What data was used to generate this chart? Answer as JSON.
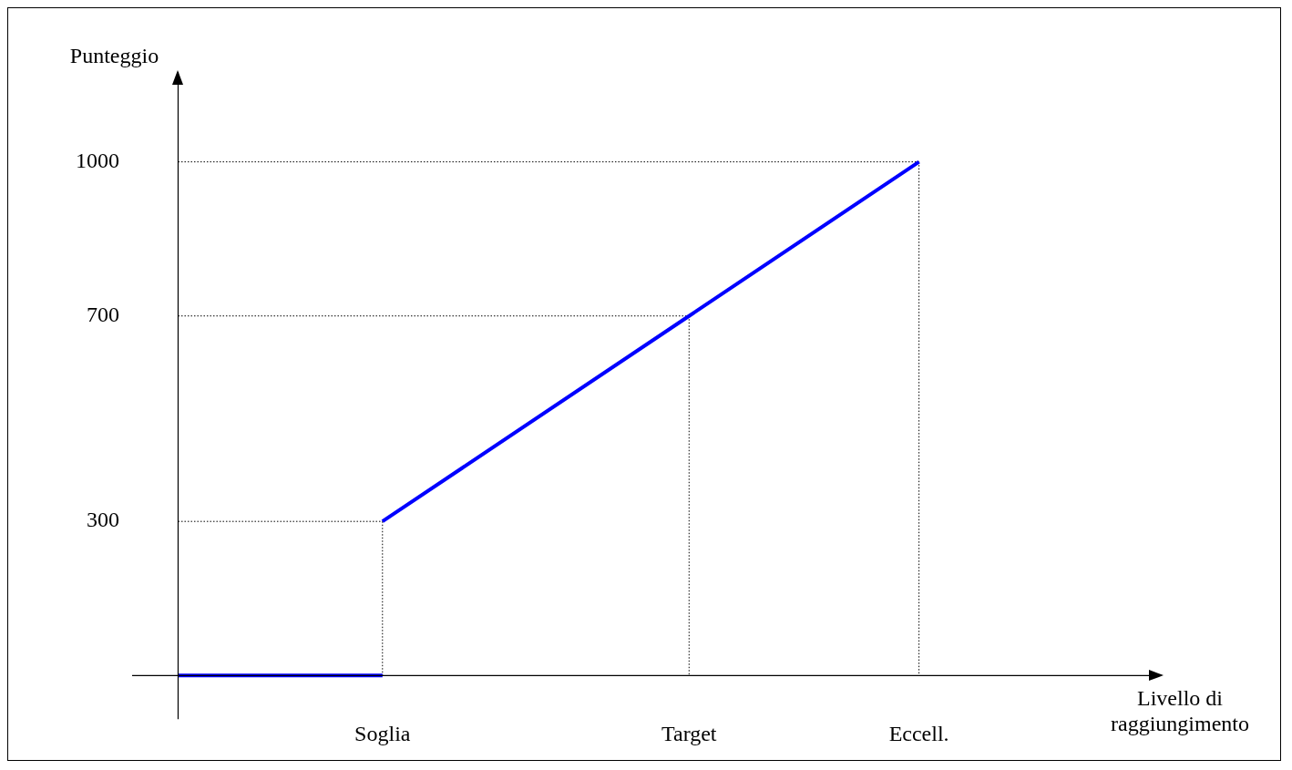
{
  "chart_data": {
    "type": "line",
    "xlabel": "Livello di raggiungimento",
    "ylabel": "Punteggio",
    "categories": [
      null,
      null,
      null,
      null,
      null,
      null,
      null,
      null,
      "Soglia",
      null,
      null,
      null,
      null,
      null,
      null,
      null,
      null,
      null,
      null,
      null,
      "Target",
      null,
      null,
      null,
      null,
      null,
      null,
      null,
      null,
      "Eccell.",
      null,
      null,
      null,
      null,
      null,
      null,
      null,
      null,
      null
    ],
    "ylim": [
      -85,
      1175
    ],
    "yticks": [
      300,
      700,
      1000
    ],
    "grid": false,
    "legend": false,
    "marker": "none",
    "series": [
      {
        "values": [
          0,
          0,
          0,
          0,
          0,
          0,
          0,
          0,
          0,
          null,
          null,
          null,
          null,
          null,
          null,
          null,
          null,
          null,
          null,
          null,
          null,
          null,
          null,
          null,
          null,
          null,
          null,
          null,
          null,
          null,
          null,
          null,
          null,
          null,
          null,
          null,
          null,
          null,
          null
        ],
        "color": "#0000ff",
        "line_style": "solid"
      },
      {
        "values": [
          null,
          null,
          null,
          null,
          null,
          null,
          null,
          null,
          300,
          null,
          null,
          null,
          null,
          null,
          null,
          null,
          null,
          null,
          null,
          null,
          700,
          null,
          null,
          null,
          null,
          null,
          null,
          null,
          null,
          1000,
          null,
          null,
          null,
          null,
          null,
          null,
          null,
          null,
          null
        ],
        "color": "#0000ff",
        "line_style": "solid"
      },
      {
        "values": [
          300,
          null,
          null,
          null,
          null,
          null,
          null,
          null,
          300,
          null,
          null,
          null,
          null,
          null,
          null,
          null,
          null,
          null,
          null,
          null,
          null,
          null,
          null,
          null,
          null,
          null,
          null,
          null,
          null,
          null,
          null,
          null,
          null,
          null,
          null,
          null,
          null,
          null,
          null
        ],
        "color": "#000000",
        "line_style": "dotted"
      },
      {
        "values": [
          700,
          null,
          null,
          null,
          null,
          null,
          null,
          null,
          null,
          null,
          null,
          null,
          null,
          null,
          null,
          null,
          null,
          null,
          null,
          null,
          700,
          null,
          null,
          null,
          null,
          null,
          null,
          null,
          null,
          null,
          null,
          null,
          null,
          null,
          null,
          null,
          null,
          null,
          null
        ],
        "color": "#000000",
        "line_style": "dotted"
      },
      {
        "values": [
          1000,
          null,
          null,
          null,
          null,
          null,
          null,
          null,
          null,
          null,
          null,
          null,
          null,
          null,
          null,
          null,
          null,
          null,
          null,
          null,
          null,
          null,
          null,
          null,
          null,
          null,
          null,
          null,
          null,
          1000,
          null,
          null,
          null,
          null,
          null,
          null,
          null,
          null,
          null
        ],
        "color": "#000000",
        "line_style": "dotted"
      },
      {
        "x": [
          "Soglia",
          "Soglia"
        ],
        "values": [
          300,
          0
        ],
        "color": "#000000",
        "line_style": "dotted"
      },
      {
        "x": [
          "Target",
          "Target"
        ],
        "values": [
          700,
          0
        ],
        "color": "#000000",
        "line_style": "dotted"
      },
      {
        "x": [
          "Eccell.",
          "Eccell."
        ],
        "values": [
          1000,
          0
        ],
        "color": "#000000",
        "line_style": "dotted"
      }
    ]
  }
}
